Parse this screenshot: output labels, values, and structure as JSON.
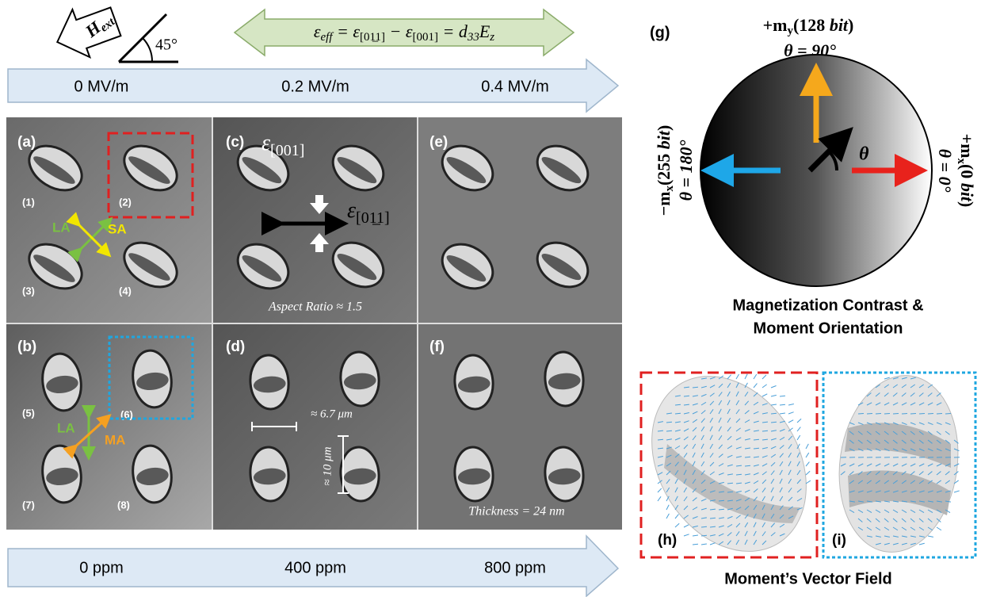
{
  "header": {
    "field_name": "H",
    "field_sub": "ext",
    "angle": "45°",
    "equation_parts": [
      "ε",
      "eff",
      " = ε",
      "[01̲1]",
      " − ε",
      "[001]",
      " = d",
      "33",
      "E",
      "z"
    ]
  },
  "field_labels": [
    "0 MV/m",
    "0.2 MV/m",
    "0.4 MV/m"
  ],
  "strain_labels": [
    "0 ppm",
    "400 ppm",
    "800 ppm"
  ],
  "panels": [
    {
      "label": "(a)",
      "particles": [
        "(1)",
        "(2)",
        "(3)",
        "(4)"
      ],
      "axes": [
        "LA",
        "SA"
      ]
    },
    {
      "label": "(b)",
      "particles": [
        "(5)",
        "(6)",
        "(7)",
        "(8)"
      ],
      "axes": [
        "LA",
        "MA"
      ]
    },
    {
      "label": "(c)",
      "strain_a": [
        "ε",
        "[001]"
      ],
      "strain_b": [
        "ε",
        "[01̲1]"
      ],
      "note": "Aspect Ratio ≈ 1.5"
    },
    {
      "label": "(d)",
      "width": "≈ 6.7 μm",
      "height": "≈ 10 μm"
    },
    {
      "label": "(e)"
    },
    {
      "label": "(f)",
      "note": "Thickness = 24 nm"
    }
  ],
  "orientation": {
    "label": "(g)",
    "top": [
      "+m",
      "y",
      "(128 ",
      "bit",
      ")"
    ],
    "top_angle": "θ = 90°",
    "left": [
      "−m",
      "x",
      "(255 ",
      "bit",
      ")"
    ],
    "left_angle": "θ = 180°",
    "right": [
      "+m",
      "x",
      "(0 ",
      "bit",
      ")"
    ],
    "right_angle": "θ = 0°",
    "theta": "θ",
    "caption": [
      "Magnetization Contrast &",
      "Moment Orientation"
    ]
  },
  "vector_field": {
    "labels": [
      "(h)",
      "(i)"
    ],
    "caption": "Moment’s Vector Field"
  }
}
